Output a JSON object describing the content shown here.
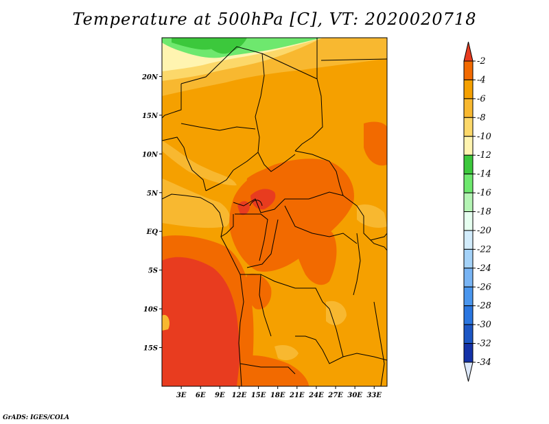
{
  "title": "Temperature at 500hPa [C], VT: 2020020718",
  "credit": "GrADS: IGES/COLA",
  "map": {
    "lon_range": [
      0,
      35
    ],
    "lat_range": [
      -20,
      25
    ],
    "lon_ticks": [
      {
        "lon": 3,
        "label": "3E"
      },
      {
        "lon": 6,
        "label": "6E"
      },
      {
        "lon": 9,
        "label": "9E"
      },
      {
        "lon": 12,
        "label": "12E"
      },
      {
        "lon": 15,
        "label": "15E"
      },
      {
        "lon": 18,
        "label": "18E"
      },
      {
        "lon": 21,
        "label": "21E"
      },
      {
        "lon": 24,
        "label": "24E"
      },
      {
        "lon": 27,
        "label": "27E"
      },
      {
        "lon": 30,
        "label": "30E"
      },
      {
        "lon": 33,
        "label": "33E"
      }
    ],
    "lat_ticks": [
      {
        "lat": 20,
        "label": "20N"
      },
      {
        "lat": 15,
        "label": "15N"
      },
      {
        "lat": 10,
        "label": "10N"
      },
      {
        "lat": 5,
        "label": "5N"
      },
      {
        "lat": 0,
        "label": "EQ"
      },
      {
        "lat": -5,
        "label": "5S"
      },
      {
        "lat": -10,
        "label": "10S"
      },
      {
        "lat": -15,
        "label": "15S"
      }
    ]
  },
  "colorbar": {
    "levels": [
      "-2",
      "-4",
      "-6",
      "-8",
      "-10",
      "-12",
      "-14",
      "-16",
      "-18",
      "-20",
      "-22",
      "-24",
      "-26",
      "-28",
      "-30",
      "-32",
      "-34"
    ],
    "colors": [
      "#e83c1f",
      "#f26a00",
      "#f5a000",
      "#f8b830",
      "#fcd86a",
      "#fff4b0",
      "#3cc83c",
      "#6ee86e",
      "#b4f4b4",
      "#e6fff0",
      "#d2ecfc",
      "#a4d2f8",
      "#78b4f4",
      "#4a96ee",
      "#2a76e0",
      "#1c56c4",
      "#1432a8",
      "#0a1478"
    ],
    "bottom_color": "#dce8fa"
  }
}
